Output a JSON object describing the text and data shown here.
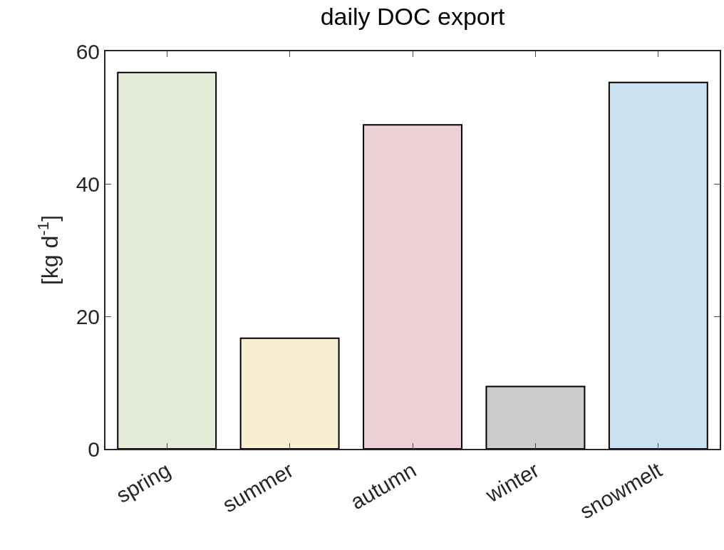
{
  "chart_data": {
    "type": "bar",
    "title": "daily DOC export",
    "ylabel": "[kg d$^{-1}$]",
    "categories": [
      "spring",
      "summer",
      "autumn",
      "winter",
      "snowmelt"
    ],
    "values": [
      56.8,
      16.7,
      48.9,
      9.4,
      55.3
    ],
    "colors": [
      "#e2ecd6",
      "#f8efd0",
      "#ecd0d6",
      "#cccccc",
      "#cce2f0"
    ],
    "ylim": [
      0,
      60
    ],
    "yticks": [
      0,
      20,
      40,
      60
    ]
  }
}
